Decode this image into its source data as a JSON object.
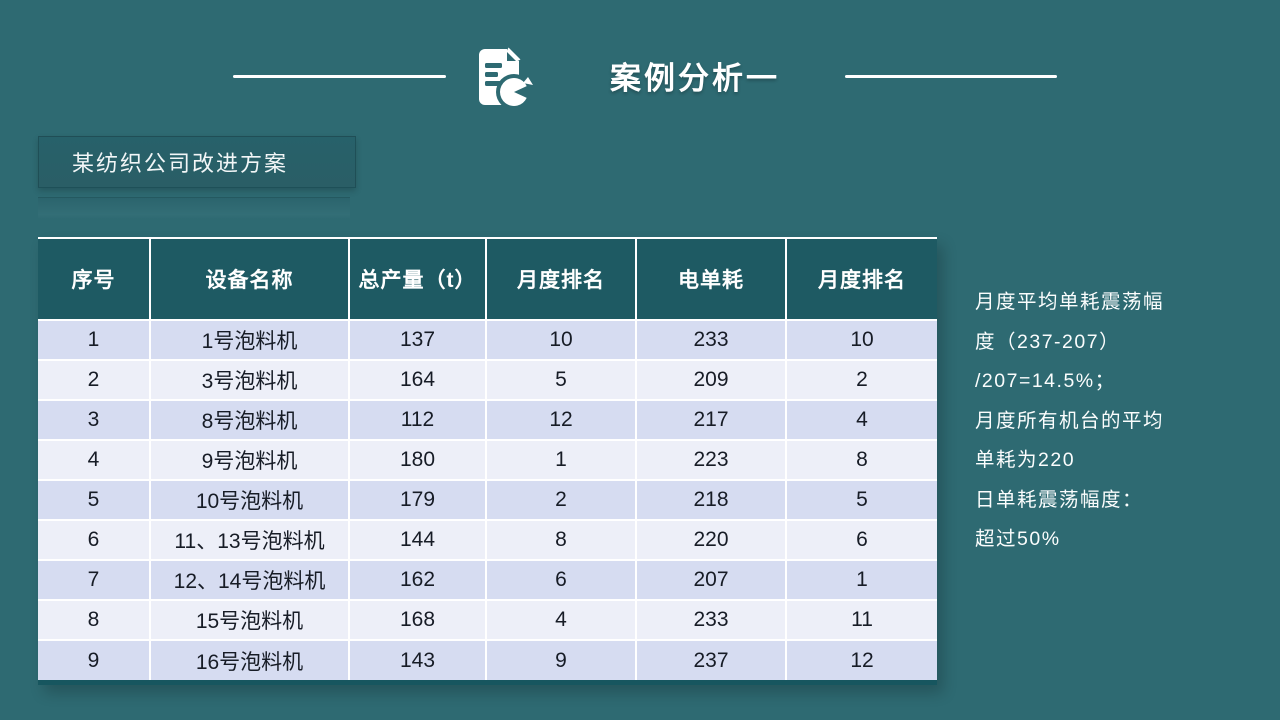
{
  "header": {
    "title": "案例分析一",
    "icon": "document-chart-icon"
  },
  "subtitle": {
    "label": "某纺织公司改进方案"
  },
  "table": {
    "columns": [
      "序号",
      "设备名称",
      "总产量（t）",
      "月度排名",
      "电单耗",
      "月度排名"
    ],
    "rows": [
      [
        "1",
        "1号泡料机",
        "137",
        "10",
        "233",
        "10"
      ],
      [
        "2",
        "3号泡料机",
        "164",
        "5",
        "209",
        "2"
      ],
      [
        "3",
        "8号泡料机",
        "112",
        "12",
        "217",
        "4"
      ],
      [
        "4",
        "9号泡料机",
        "180",
        "1",
        "223",
        "8"
      ],
      [
        "5",
        "10号泡料机",
        "179",
        "2",
        "218",
        "5"
      ],
      [
        "6",
        "11、13号泡料机",
        "144",
        "8",
        "220",
        "6"
      ],
      [
        "7",
        "12、14号泡料机",
        "162",
        "6",
        "207",
        "1"
      ],
      [
        "8",
        "15号泡料机",
        "168",
        "4",
        "233",
        "11"
      ],
      [
        "9",
        "16号泡料机",
        "143",
        "9",
        "237",
        "12"
      ]
    ]
  },
  "notes": {
    "lines": [
      "月度平均单耗震荡幅",
      "度（237-207）",
      "/207=14.5%；",
      "月度所有机台的平均",
      "单耗为220",
      "日单耗震荡幅度：",
      "超过50%"
    ]
  },
  "colors": {
    "background": "#2e6a72",
    "table_header": "#1e5a63",
    "row_odd": "#d6dcf1",
    "row_even": "#edeff8",
    "accent_dark": "#17565f",
    "text_light": "#ffffff",
    "text_dark": "#171c26"
  }
}
